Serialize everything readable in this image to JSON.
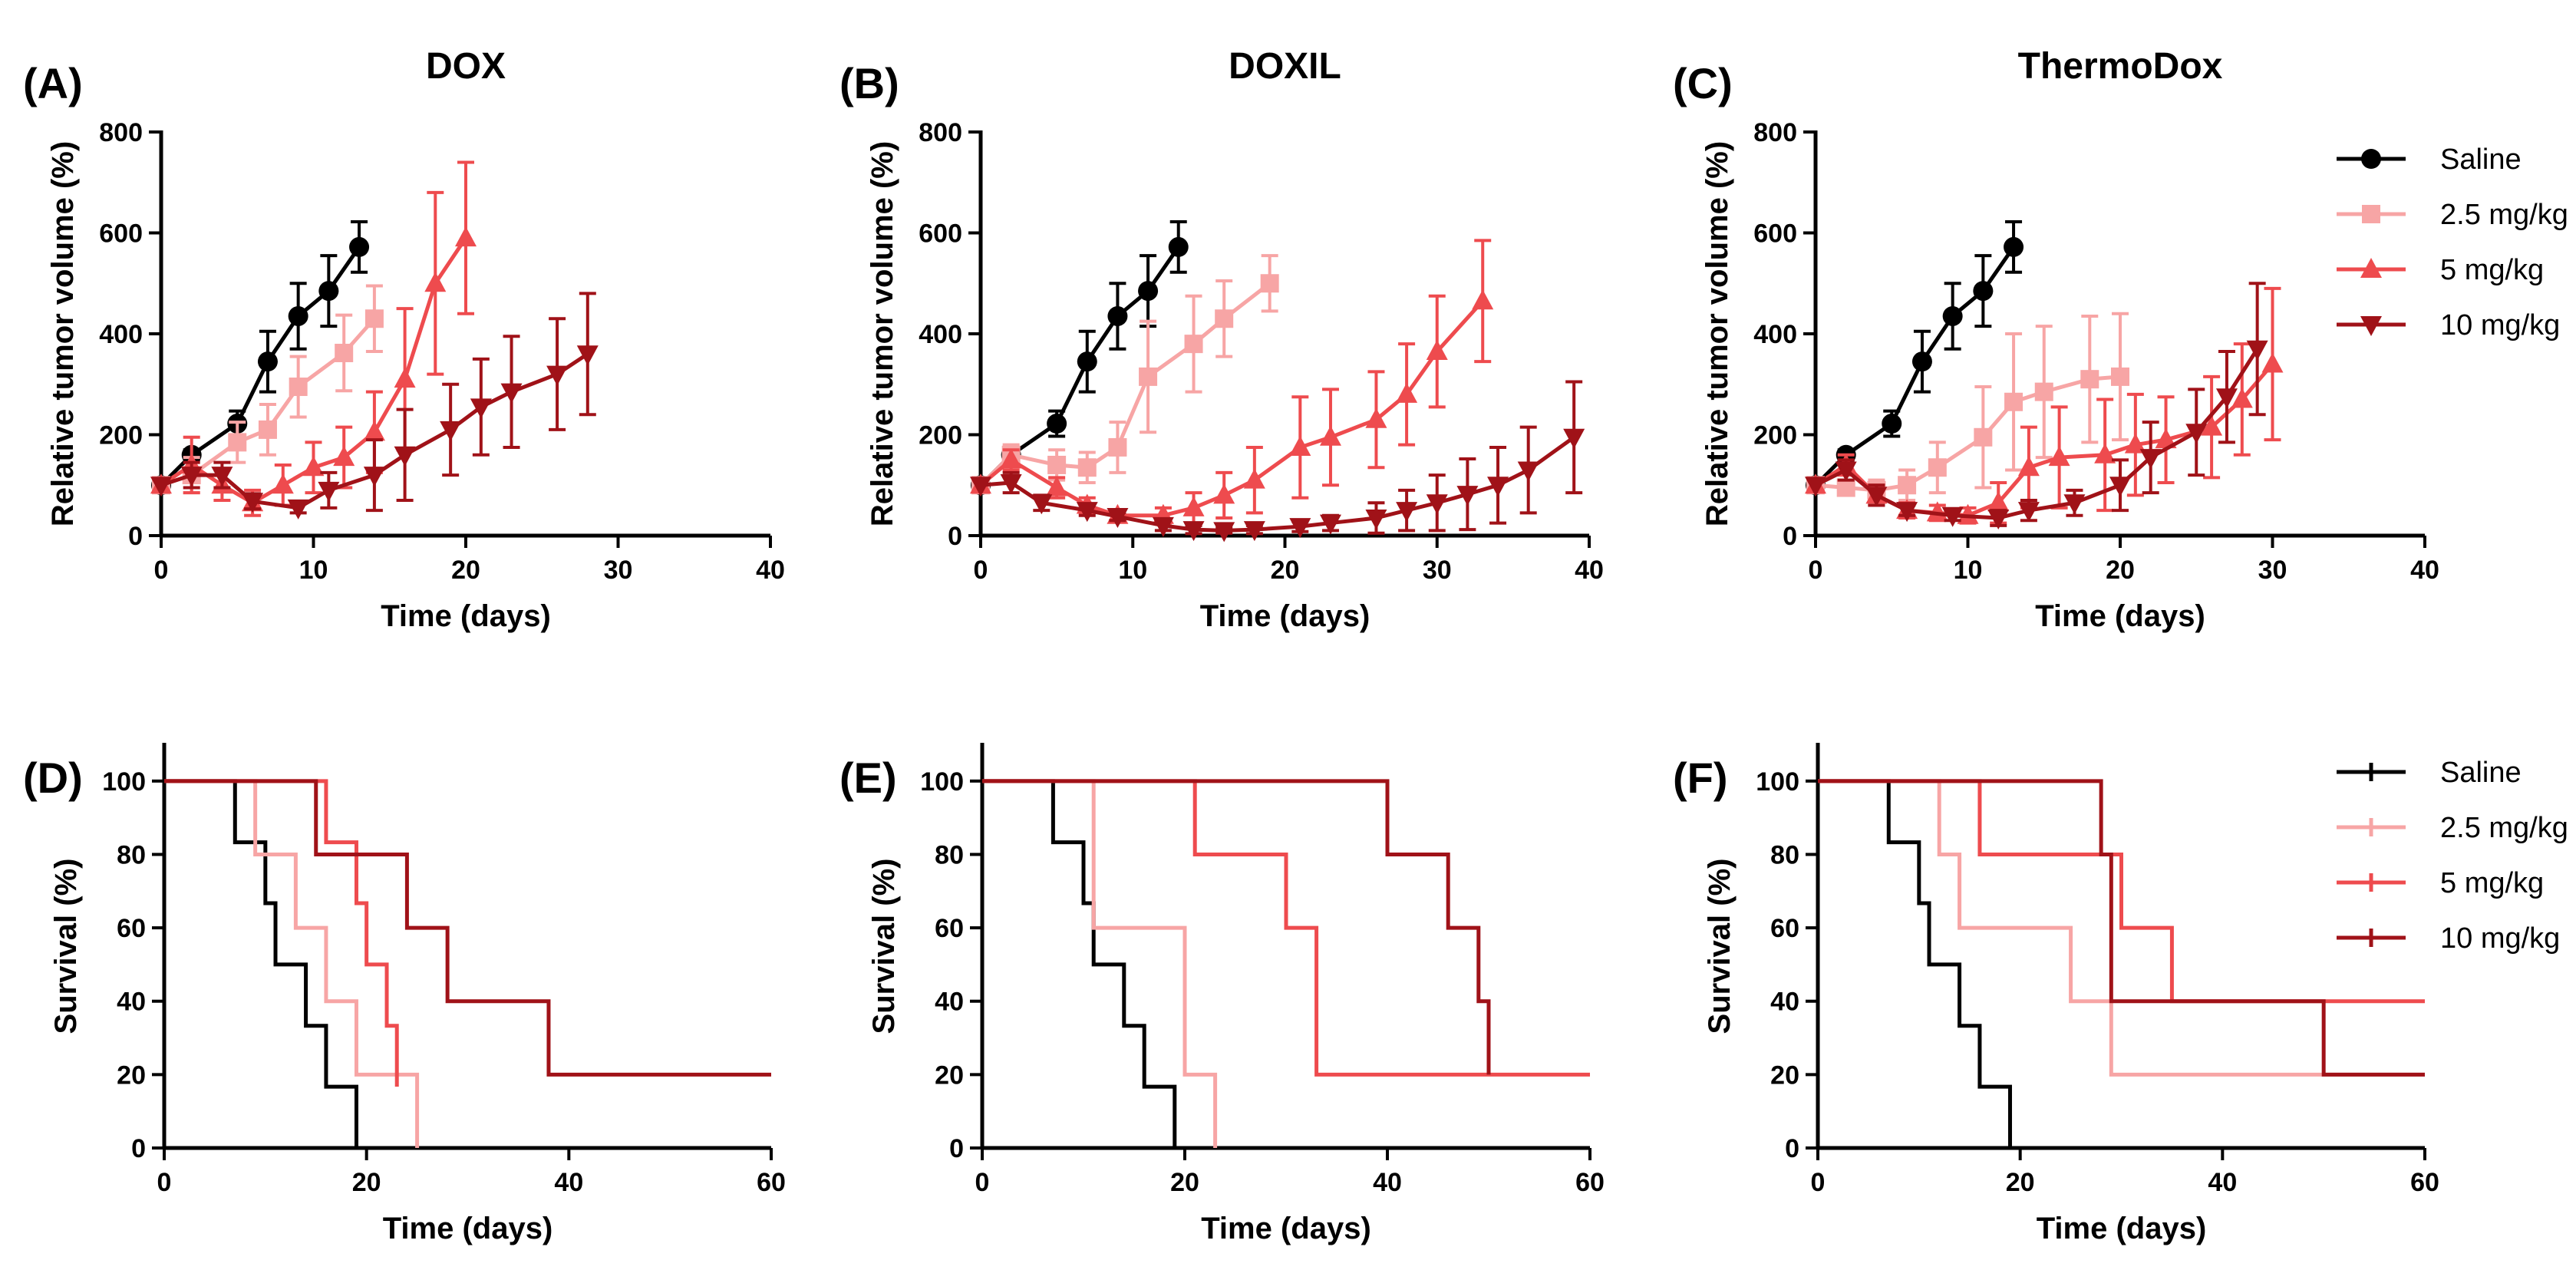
{
  "colors": {
    "saline": "#000000",
    "dose_2_5": "#f7a5a5",
    "dose_5": "#ee4b4e",
    "dose_10": "#a01218"
  },
  "legend_growth": [
    "Saline",
    "2.5 mg/kg",
    "5 mg/kg",
    "10 mg/kg"
  ],
  "legend_survival": [
    "Saline",
    "2.5 mg/kg",
    "5 mg/kg",
    "10 mg/kg"
  ],
  "chart_data": [
    {
      "type": "line",
      "letter": "(A)",
      "title": "DOX",
      "xlabel": "Time (days)",
      "ylabel": "Relative tumor volume (%)",
      "xlim": [
        0,
        40
      ],
      "ylim": [
        0,
        800
      ],
      "xticks": [
        "0",
        "10",
        "20",
        "30",
        "40"
      ],
      "yticks": [
        "0",
        "200",
        "400",
        "600",
        "800"
      ],
      "series": [
        {
          "name": "Saline",
          "color_key": "saline",
          "marker": "circle",
          "x": [
            0,
            2,
            5,
            7,
            9,
            11,
            13
          ],
          "y": [
            100,
            160,
            222,
            345,
            435,
            485,
            572
          ],
          "err": [
            0,
            10,
            25,
            60,
            65,
            70,
            50
          ]
        },
        {
          "name": "2.5 mg/kg",
          "color_key": "dose_2_5",
          "marker": "square",
          "x": [
            0,
            2,
            5,
            7,
            9,
            12,
            14
          ],
          "y": [
            100,
            120,
            185,
            210,
            295,
            362,
            430
          ],
          "err": [
            0,
            35,
            40,
            50,
            60,
            75,
            65
          ]
        },
        {
          "name": "5 mg/kg",
          "color_key": "dose_5",
          "marker": "triangle-up",
          "x": [
            0,
            2,
            4,
            6,
            8,
            10,
            12,
            14,
            16,
            18,
            20
          ],
          "y": [
            100,
            140,
            100,
            65,
            100,
            135,
            155,
            205,
            310,
            500,
            590
          ],
          "err": [
            0,
            55,
            30,
            25,
            40,
            50,
            60,
            80,
            140,
            180,
            150
          ]
        },
        {
          "name": "10 mg/kg",
          "color_key": "dose_10",
          "marker": "triangle-down",
          "x": [
            0,
            2,
            4,
            6,
            9,
            11,
            14,
            16,
            19,
            21,
            23,
            26,
            28
          ],
          "y": [
            100,
            120,
            120,
            68,
            55,
            90,
            120,
            160,
            210,
            255,
            285,
            320,
            360
          ],
          "err": [
            0,
            25,
            25,
            15,
            10,
            35,
            70,
            90,
            90,
            95,
            110,
            110,
            120
          ]
        }
      ]
    },
    {
      "type": "line",
      "letter": "(B)",
      "title": "DOXIL",
      "xlabel": "Time (days)",
      "ylabel": "Relative tumor volume (%)",
      "xlim": [
        0,
        40
      ],
      "ylim": [
        0,
        800
      ],
      "xticks": [
        "0",
        "10",
        "20",
        "30",
        "40"
      ],
      "yticks": [
        "0",
        "200",
        "400",
        "600",
        "800"
      ],
      "series": [
        {
          "name": "Saline",
          "color_key": "saline",
          "marker": "circle",
          "x": [
            0,
            2,
            5,
            7,
            9,
            11,
            13
          ],
          "y": [
            100,
            160,
            222,
            345,
            435,
            485,
            572
          ],
          "err": [
            0,
            10,
            25,
            60,
            65,
            70,
            50
          ]
        },
        {
          "name": "2.5 mg/kg",
          "color_key": "dose_2_5",
          "marker": "square",
          "x": [
            0,
            2,
            5,
            7,
            9,
            11,
            14,
            16,
            19
          ],
          "y": [
            100,
            160,
            140,
            135,
            175,
            315,
            380,
            430,
            500
          ],
          "err": [
            0,
            20,
            30,
            30,
            50,
            110,
            95,
            75,
            55
          ]
        },
        {
          "name": "5 mg/kg",
          "color_key": "dose_5",
          "marker": "triangle-up",
          "x": [
            0,
            2,
            5,
            7,
            9,
            12,
            14,
            16,
            18,
            21,
            23,
            26,
            28,
            30,
            33
          ],
          "y": [
            100,
            150,
            95,
            60,
            40,
            40,
            55,
            80,
            110,
            175,
            195,
            230,
            280,
            365,
            465
          ],
          "err": [
            0,
            20,
            20,
            15,
            10,
            15,
            30,
            45,
            65,
            100,
            95,
            95,
            100,
            110,
            120
          ]
        },
        {
          "name": "10 mg/kg",
          "color_key": "dose_10",
          "marker": "triangle-down",
          "x": [
            0,
            2,
            4,
            7,
            9,
            12,
            14,
            16,
            18,
            21,
            23,
            26,
            28,
            30,
            32,
            34,
            36,
            39
          ],
          "y": [
            100,
            105,
            65,
            50,
            38,
            20,
            12,
            10,
            12,
            18,
            25,
            35,
            50,
            65,
            82,
            100,
            130,
            195
          ],
          "err": [
            0,
            20,
            15,
            10,
            8,
            10,
            8,
            5,
            8,
            10,
            15,
            30,
            40,
            55,
            70,
            75,
            85,
            110
          ]
        }
      ]
    },
    {
      "type": "line",
      "letter": "(C)",
      "title": "ThermoDox",
      "xlabel": "Time (days)",
      "ylabel": "Relative tumor volume (%)",
      "xlim": [
        0,
        40
      ],
      "ylim": [
        0,
        800
      ],
      "xticks": [
        "0",
        "10",
        "20",
        "30",
        "40"
      ],
      "yticks": [
        "0",
        "200",
        "400",
        "600",
        "800"
      ],
      "series": [
        {
          "name": "Saline",
          "color_key": "saline",
          "marker": "circle",
          "x": [
            0,
            2,
            5,
            7,
            9,
            11,
            13
          ],
          "y": [
            100,
            160,
            222,
            345,
            435,
            485,
            572
          ],
          "err": [
            0,
            10,
            25,
            60,
            65,
            70,
            50
          ]
        },
        {
          "name": "2.5 mg/kg",
          "color_key": "dose_2_5",
          "marker": "square",
          "x": [
            0,
            2,
            4,
            6,
            8,
            11,
            13,
            15,
            18,
            20
          ],
          "y": [
            100,
            95,
            90,
            100,
            135,
            195,
            265,
            285,
            310,
            315
          ],
          "err": [
            0,
            15,
            20,
            30,
            50,
            100,
            135,
            130,
            125,
            125
          ]
        },
        {
          "name": "5 mg/kg",
          "color_key": "dose_5",
          "marker": "triangle-up",
          "x": [
            0,
            2,
            4,
            6,
            8,
            10,
            12,
            14,
            16,
            19,
            21,
            23,
            26,
            28,
            30
          ],
          "y": [
            100,
            140,
            80,
            50,
            45,
            40,
            65,
            135,
            155,
            160,
            180,
            190,
            215,
            270,
            340
          ],
          "err": [
            0,
            20,
            20,
            15,
            15,
            15,
            40,
            80,
            100,
            110,
            100,
            85,
            100,
            110,
            150
          ]
        },
        {
          "name": "10 mg/kg",
          "color_key": "dose_10",
          "marker": "triangle-down",
          "x": [
            0,
            2,
            4,
            6,
            9,
            12,
            14,
            17,
            20,
            22,
            25,
            27,
            29
          ],
          "y": [
            100,
            130,
            80,
            50,
            40,
            35,
            50,
            65,
            100,
            155,
            205,
            275,
            370
          ],
          "err": [
            0,
            20,
            20,
            10,
            10,
            15,
            20,
            25,
            50,
            70,
            85,
            90,
            130
          ]
        }
      ]
    },
    {
      "type": "line",
      "step": true,
      "letter": "(D)",
      "xlabel": "Time (days)",
      "ylabel": "Survival (%)",
      "xlim": [
        0,
        60
      ],
      "ylim": [
        0,
        110
      ],
      "xticks": [
        "0",
        "20",
        "40",
        "60"
      ],
      "yticks": [
        "0",
        "20",
        "40",
        "60",
        "80",
        "100"
      ],
      "series": [
        {
          "name": "Saline",
          "color_key": "saline",
          "x": [
            0,
            7,
            10,
            11,
            12,
            14,
            16,
            19
          ],
          "y": [
            100,
            83.3,
            66.7,
            50,
            50,
            33.3,
            16.7,
            0
          ]
        },
        {
          "name": "2.5 mg/kg",
          "color_key": "dose_2_5",
          "x": [
            0,
            9,
            11,
            13,
            16,
            19,
            25
          ],
          "y": [
            100,
            80,
            80,
            60,
            40,
            20,
            0
          ]
        },
        {
          "name": "5 mg/kg",
          "color_key": "dose_5",
          "x": [
            0,
            16,
            19,
            20,
            22,
            23
          ],
          "y": [
            100,
            83.3,
            66.7,
            50,
            33.3,
            16.7
          ]
        },
        {
          "name": "10 mg/kg",
          "color_key": "dose_10",
          "x": [
            0,
            15,
            24,
            28,
            38,
            60
          ],
          "y": [
            100,
            80,
            60,
            40,
            20,
            20
          ]
        }
      ]
    },
    {
      "type": "line",
      "step": true,
      "letter": "(E)",
      "xlabel": "Time (days)",
      "ylabel": "Survival (%)",
      "xlim": [
        0,
        60
      ],
      "ylim": [
        0,
        110
      ],
      "xticks": [
        "0",
        "20",
        "40",
        "60"
      ],
      "yticks": [
        "0",
        "20",
        "40",
        "60",
        "80",
        "100"
      ],
      "series": [
        {
          "name": "Saline",
          "color_key": "saline",
          "x": [
            0,
            7,
            10,
            11,
            14,
            16,
            19
          ],
          "y": [
            100,
            83.3,
            66.7,
            50,
            33.3,
            16.7,
            0
          ]
        },
        {
          "name": "2.5 mg/kg",
          "color_key": "dose_2_5",
          "x": [
            0,
            11,
            20,
            23
          ],
          "y": [
            100,
            60,
            20,
            0
          ]
        },
        {
          "name": "5 mg/kg",
          "color_key": "dose_5",
          "x": [
            0,
            21,
            30,
            33,
            60
          ],
          "y": [
            100,
            80,
            60,
            20,
            20
          ]
        },
        {
          "name": "10 mg/kg",
          "color_key": "dose_10",
          "x": [
            0,
            40,
            46,
            49,
            50
          ],
          "y": [
            100,
            80,
            60,
            40,
            20
          ]
        }
      ]
    },
    {
      "type": "line",
      "step": true,
      "letter": "(F)",
      "xlabel": "Time (days)",
      "ylabel": "Survival (%)",
      "xlim": [
        0,
        60
      ],
      "ylim": [
        0,
        110
      ],
      "xticks": [
        "0",
        "20",
        "40",
        "60"
      ],
      "yticks": [
        "0",
        "20",
        "40",
        "60",
        "80",
        "100"
      ],
      "series": [
        {
          "name": "Saline",
          "color_key": "saline",
          "x": [
            0,
            7,
            10,
            11,
            14,
            16,
            19
          ],
          "y": [
            100,
            83.3,
            66.7,
            50,
            33.3,
            16.7,
            0
          ]
        },
        {
          "name": "2.5 mg/kg",
          "color_key": "dose_2_5",
          "x": [
            0,
            12,
            14,
            25,
            29,
            60
          ],
          "y": [
            100,
            80,
            60,
            40,
            20,
            20
          ]
        },
        {
          "name": "5 mg/kg",
          "color_key": "dose_5",
          "x": [
            0,
            16,
            30,
            35,
            60
          ],
          "y": [
            100,
            80,
            60,
            40,
            40
          ]
        },
        {
          "name": "10 mg/kg",
          "color_key": "dose_10",
          "x": [
            0,
            28,
            29,
            50,
            60
          ],
          "y": [
            100,
            80,
            40,
            20,
            20
          ]
        }
      ]
    }
  ]
}
